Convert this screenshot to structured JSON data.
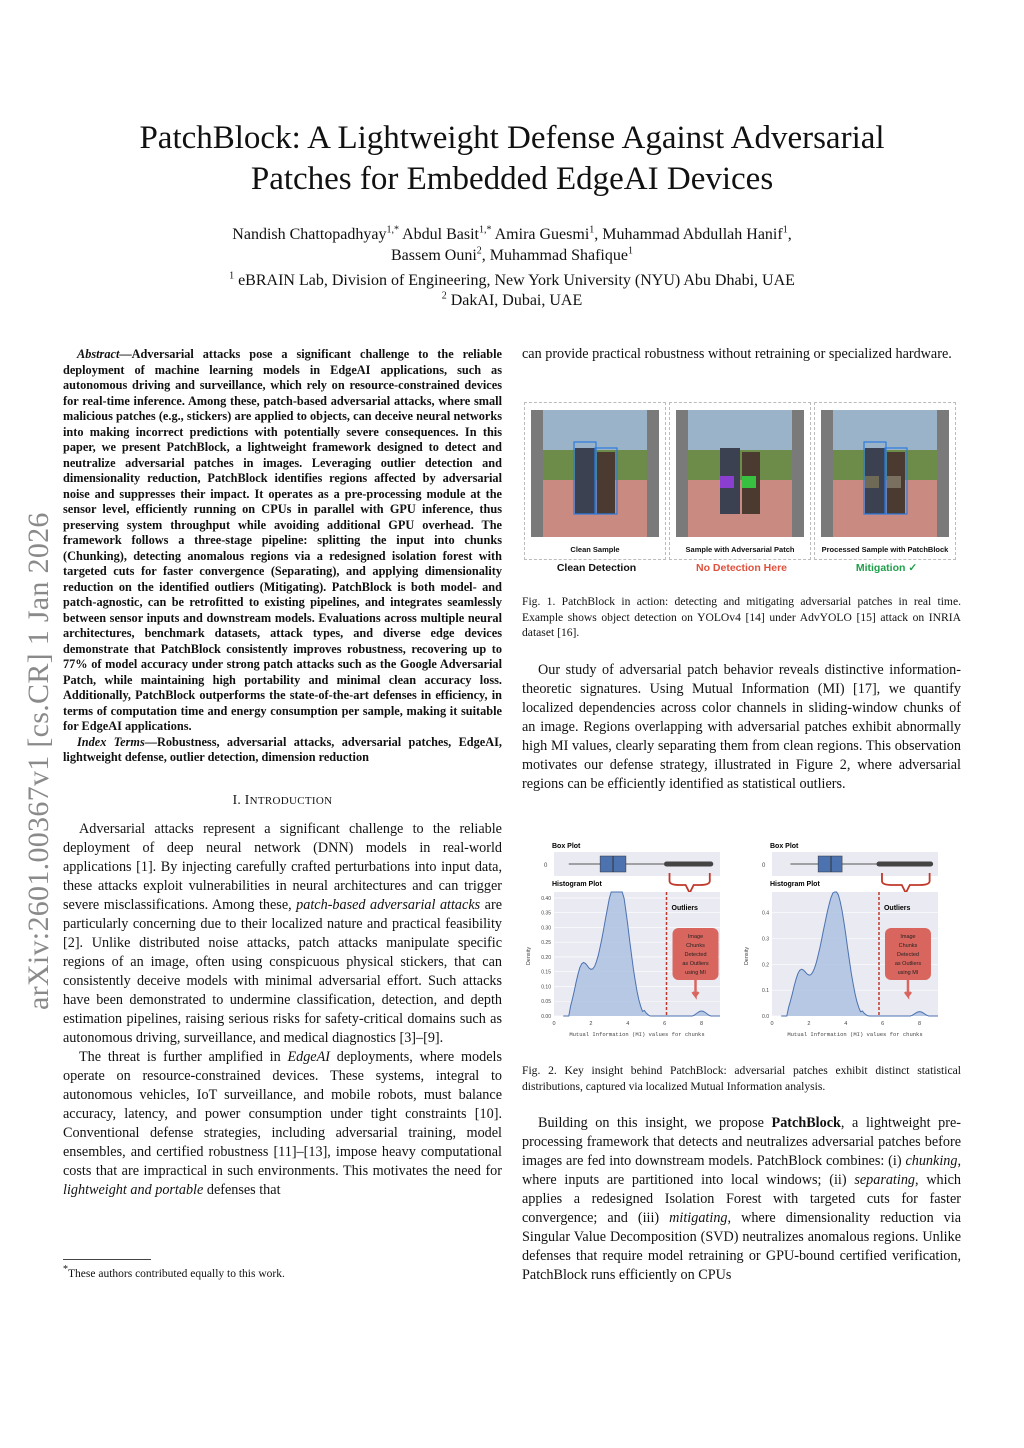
{
  "title_lines": [
    "PatchBlock: A Lightweight Defense Against Adversarial",
    "Patches for Embedded EdgeAI Devices"
  ],
  "authors": [
    {
      "name": "Nandish Chattopadhyay",
      "sup": "1,*"
    },
    {
      "name": "Abdul Basit",
      "sup": "1,*"
    },
    {
      "name": "Amira Guesmi",
      "sup": "1"
    },
    {
      "name": "Muhammad Abdullah Hanif",
      "sup": "1"
    },
    {
      "name": "Bassem Ouni",
      "sup": "2"
    },
    {
      "name": "Muhammad Shafique",
      "sup": "1"
    }
  ],
  "affiliations": [
    {
      "sup": "1",
      "text": "eBRAIN Lab, Division of Engineering, New York University (NYU) Abu Dhabi, UAE"
    },
    {
      "sup": "2",
      "text": "DakAI, Dubai, UAE"
    }
  ],
  "arxiv_stamp": "arXiv:2601.00367v1  [cs.CR]  1 Jan 2026",
  "abstract": {
    "label": "Abstract",
    "text": "—Adversarial attacks pose a significant challenge to the reliable deployment of machine learning models in EdgeAI applications, such as autonomous driving and surveillance, which rely on resource-constrained devices for real-time inference. Among these, patch-based adversarial attacks, where small malicious patches (e.g., stickers) are applied to objects, can deceive neural networks into making incorrect predictions with potentially severe consequences. In this paper, we present PatchBlock, a lightweight framework designed to detect and neutralize adversarial patches in images. Leveraging outlier detection and dimensionality reduction, PatchBlock identifies regions affected by adversarial noise and suppresses their impact. It operates as a pre-processing module at the sensor level, efficiently running on CPUs in parallel with GPU inference, thus preserving system throughput while avoiding additional GPU overhead. The framework follows a three-stage pipeline: splitting the input into chunks (Chunking), detecting anomalous regions via a redesigned isolation forest with targeted cuts for faster convergence (Separating), and applying dimensionality reduction on the identified outliers (Mitigating). PatchBlock is both model- and patch-agnostic, can be retrofitted to existing pipelines, and integrates seamlessly between sensor inputs and downstream models. Evaluations across multiple neural architectures, benchmark datasets, attack types, and diverse edge devices demonstrate that PatchBlock consistently improves robustness, recovering up to 77% of model accuracy under strong patch attacks such as the Google Adversarial Patch, while maintaining high portability and minimal clean accuracy loss. Additionally, PatchBlock outperforms the state-of-the-art defenses in efficiency, in terms of computation time and energy consumption per sample, making it suitable for EdgeAI applications."
  },
  "index_terms": {
    "label": "Index Terms",
    "text": "—Robustness, adversarial attacks, adversarial patches, EdgeAI, lightweight defense, outlier detection, dimension reduction"
  },
  "section1": {
    "num": "I. ",
    "first": "I",
    "rest": "NTRODUCTION"
  },
  "intro_paragraphs": [
    [
      {
        "t": "Adversarial attacks represent a significant challenge to the reliable deployment of deep neural network (DNN) models in real-world applications [1]. By injecting carefully crafted perturbations into input data, these attacks exploit vulnerabilities in neural architectures and can trigger severe misclassifications. Among these, "
      },
      {
        "t": "patch-based adversarial attacks",
        "i": true
      },
      {
        "t": " are particularly concerning due to their localized nature and practical feasibility [2]. Unlike distributed noise attacks, patch attacks manipulate specific regions of an image, often using conspicuous physical stickers, that can consistently deceive models with minimal adversarial effort. Such attacks have been demonstrated to undermine classification, detection, and depth estimation pipelines, raising serious risks for safety-critical domains such as autonomous driving, surveillance, and medical diagnostics [3]–[9]."
      }
    ],
    [
      {
        "t": "The threat is further amplified in "
      },
      {
        "t": "EdgeAI",
        "i": true
      },
      {
        "t": " deployments, where models operate on resource-constrained devices. These systems, integral to autonomous vehicles, IoT surveillance, and mobile robots, must balance accuracy, latency, and power consumption under tight constraints [10]. Conventional defense strategies, including adversarial training, model ensembles, and certified robustness [11]–[13], impose heavy computational costs that are impractical in such environments. This motivates the need for "
      },
      {
        "t": "lightweight and portable",
        "i": true
      },
      {
        "t": " defenses that"
      }
    ]
  ],
  "footnote": {
    "sup": "*",
    "text": "These authors contributed equally to this work."
  },
  "right_top_text": "can provide practical robustness without retraining or specialized hardware.",
  "figure1": {
    "panels": [
      {
        "label": "Clean Sample",
        "result": "Clean Detection",
        "color": "#111111"
      },
      {
        "label": "Sample with Adversarial Patch",
        "result": "No Detection Here",
        "color": "#e0503c"
      },
      {
        "label": "Processed Sample with PatchBlock",
        "result": "Mitigation ✓",
        "color": "#1e9e4a"
      }
    ],
    "caption": "Fig. 1.  PatchBlock in action: detecting and mitigating adversarial patches in real time. Example shows object detection on YOLOv4 [14] under AdvYOLO [15] attack on INRIA dataset [16]."
  },
  "right_para1": "Our study of adversarial patch behavior reveals distinctive information-theoretic signatures. Using Mutual Information (MI) [17], we quantify localized dependencies across color channels in sliding-window chunks of an image. Regions overlapping with adversarial patches exhibit abnormally high MI values, clearly separating them from clean regions. This observation motivates our defense strategy, illustrated in Figure 2, where adversarial regions can be efficiently identified as statistical outliers.",
  "figure2": {
    "plots": [
      {
        "box_title": "Box Plot",
        "box_tick": "0",
        "hist_title": "Histogram Plot",
        "ylabel": "Density",
        "yticks": [
          "0.00",
          "0.05",
          "0.10",
          "0.15",
          "0.20",
          "0.25",
          "0.30",
          "0.35",
          "0.40"
        ],
        "ymax": 0.42,
        "xticks": [
          "0",
          "2",
          "4",
          "6",
          "8"
        ],
        "xlabel": "Mutual Information (MI) values for chunks",
        "threshold": 6.1,
        "outliers_label": "Outliers",
        "annotation": "Image Chunks Detected as Outliers using MI",
        "box": {
          "whisker_low": 0.8,
          "q1": 2.5,
          "median": 3.2,
          "q3": 3.9,
          "whisker_high": 6.1,
          "max": 8.5
        }
      },
      {
        "box_title": "Box Plot",
        "box_tick": "0",
        "hist_title": "Histogram Plot",
        "ylabel": "Density",
        "yticks": [
          "0.0",
          "0.1",
          "0.2",
          "0.3",
          "0.4"
        ],
        "ymax": 0.48,
        "xticks": [
          "0",
          "2",
          "4",
          "6",
          "8"
        ],
        "xlabel": "Mutual Information (MI) values for chunks",
        "threshold": 5.8,
        "outliers_label": "Outliers",
        "annotation": "Image Chunks Detected as Outliers using MI",
        "box": {
          "whisker_low": 1.0,
          "q1": 2.5,
          "median": 3.2,
          "q3": 3.8,
          "whisker_high": 5.8,
          "max": 8.6
        }
      }
    ],
    "accent": "#c0392b",
    "caption": "Fig. 2.  Key insight behind PatchBlock: adversarial patches exhibit distinct statistical distributions, captured via localized Mutual Information analysis."
  },
  "right_para2": [
    {
      "t": "Building on this insight, we propose "
    },
    {
      "t": "PatchBlock",
      "b": true
    },
    {
      "t": ", a lightweight pre-processing framework that detects and neutralizes adversarial patches before images are fed into downstream models. PatchBlock combines: (i) "
    },
    {
      "t": "chunking",
      "i": true
    },
    {
      "t": ", where inputs are partitioned into local windows; (ii) "
    },
    {
      "t": "separating",
      "i": true
    },
    {
      "t": ", which applies a redesigned Isolation Forest with targeted cuts for faster convergence; and (iii) "
    },
    {
      "t": "mitigating",
      "i": true
    },
    {
      "t": ", where dimensionality reduction via Singular Value Decomposition (SVD) neutralizes anomalous regions. Unlike defenses that require model retraining or GPU-bound certified verification, PatchBlock runs efficiently on CPUs"
    }
  ]
}
